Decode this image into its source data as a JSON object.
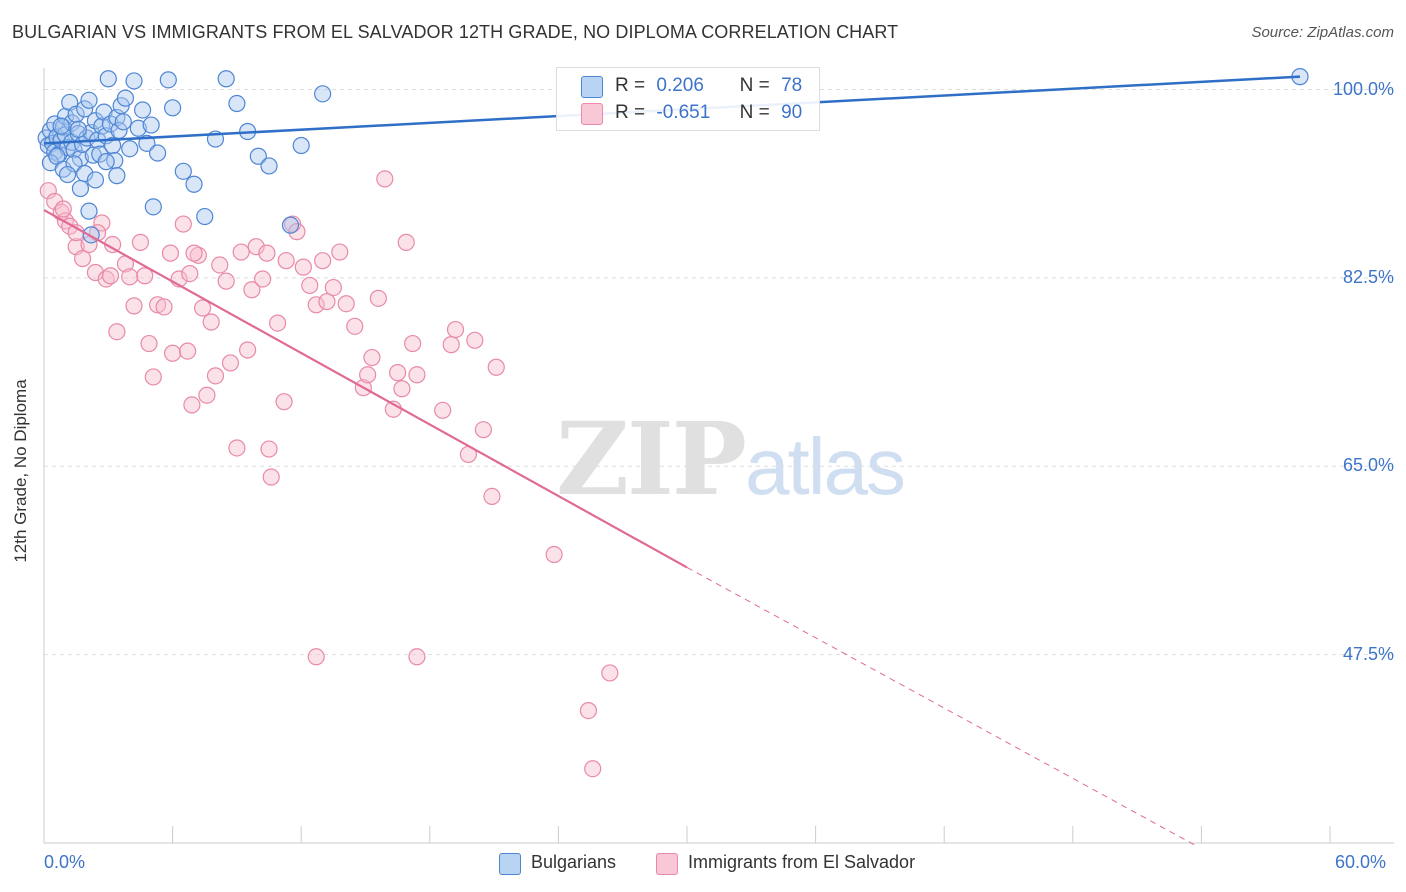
{
  "title": "BULGARIAN VS IMMIGRANTS FROM EL SALVADOR 12TH GRADE, NO DIPLOMA CORRELATION CHART",
  "source": "Source: ZipAtlas.com",
  "watermark": {
    "zip": "ZIP",
    "atlas": "atlas"
  },
  "colors": {
    "blue_fill": "#a9c8ef",
    "blue_stroke": "#4f86d4",
    "blue_line": "#2f6fc8",
    "pink_fill": "#f6bccd",
    "pink_stroke": "#e88aa8",
    "pink_line": "#e06a95",
    "grid": "#dddddd",
    "axis_text": "#3d74c9"
  },
  "legend_top": {
    "rows": [
      {
        "r_label": "R =",
        "r_value": "0.206",
        "n_label": "N =",
        "n_value": "78"
      },
      {
        "r_label": "R =",
        "r_value": "-0.651",
        "n_label": "N =",
        "n_value": "90"
      }
    ]
  },
  "legend_bottom": {
    "items": [
      "Bulgarians",
      "Immigrants from El Salvador"
    ]
  },
  "chart_data": {
    "type": "scatter",
    "title": "BULGARIAN VS IMMIGRANTS FROM EL SALVADOR 12TH GRADE, NO DIPLOMA CORRELATION CHART",
    "xlabel": "",
    "ylabel": "12th Grade, No Diploma",
    "xlim": [
      0,
      60
    ],
    "ylim": [
      30,
      102
    ],
    "x_tick_labels": [
      "0.0%",
      "60.0%"
    ],
    "y_ticks": [
      47.5,
      65.0,
      82.5,
      100.0
    ],
    "y_tick_labels": [
      "47.5%",
      "65.0%",
      "82.5%",
      "100.0%"
    ],
    "grid": true,
    "legend": "bottom",
    "series": [
      {
        "name": "Bulgarians",
        "R": 0.206,
        "N": 78,
        "trend": {
          "x": [
            0,
            58.6
          ],
          "y": [
            95.0,
            101.2
          ]
        },
        "points": [
          [
            0.1,
            95.5
          ],
          [
            0.2,
            94.8
          ],
          [
            0.3,
            96.2
          ],
          [
            0.4,
            95.0
          ],
          [
            0.5,
            94.2
          ],
          [
            0.5,
            96.8
          ],
          [
            0.6,
            95.6
          ],
          [
            0.7,
            94.0
          ],
          [
            0.8,
            95.3
          ],
          [
            0.9,
            96.5
          ],
          [
            1.0,
            95.8
          ],
          [
            1.0,
            97.5
          ],
          [
            1.1,
            94.6
          ],
          [
            1.2,
            98.8
          ],
          [
            1.3,
            95.1
          ],
          [
            1.3,
            96.9
          ],
          [
            1.4,
            94.4
          ],
          [
            1.5,
            97.7
          ],
          [
            1.6,
            95.9
          ],
          [
            1.7,
            93.6
          ],
          [
            1.8,
            94.9
          ],
          [
            1.9,
            98.2
          ],
          [
            2.0,
            95.5
          ],
          [
            2.1,
            99.0
          ],
          [
            2.2,
            96.0
          ],
          [
            2.3,
            93.9
          ],
          [
            2.4,
            97.1
          ],
          [
            2.5,
            95.3
          ],
          [
            2.6,
            94.0
          ],
          [
            2.7,
            96.6
          ],
          [
            2.8,
            97.9
          ],
          [
            2.9,
            95.7
          ],
          [
            3.0,
            101.0
          ],
          [
            3.1,
            96.8
          ],
          [
            3.2,
            94.8
          ],
          [
            3.3,
            93.4
          ],
          [
            3.4,
            97.4
          ],
          [
            3.5,
            96.2
          ],
          [
            3.6,
            98.5
          ],
          [
            3.7,
            97.0
          ],
          [
            3.8,
            99.2
          ],
          [
            4.0,
            94.5
          ],
          [
            4.2,
            100.8
          ],
          [
            4.4,
            96.4
          ],
          [
            4.6,
            98.1
          ],
          [
            4.8,
            95.0
          ],
          [
            5.0,
            96.7
          ],
          [
            5.3,
            94.1
          ],
          [
            5.8,
            100.9
          ],
          [
            6.0,
            98.3
          ],
          [
            6.5,
            92.4
          ],
          [
            7.0,
            91.2
          ],
          [
            7.5,
            88.2
          ],
          [
            8.0,
            95.4
          ],
          [
            8.5,
            101.0
          ],
          [
            9.0,
            98.7
          ],
          [
            9.5,
            96.1
          ],
          [
            10.0,
            93.8
          ],
          [
            10.5,
            92.9
          ],
          [
            11.5,
            87.4
          ],
          [
            12.0,
            94.8
          ],
          [
            13.0,
            99.6
          ],
          [
            0.3,
            93.2
          ],
          [
            0.6,
            93.8
          ],
          [
            0.9,
            92.6
          ],
          [
            1.4,
            93.1
          ],
          [
            1.9,
            92.2
          ],
          [
            2.4,
            91.6
          ],
          [
            2.9,
            93.3
          ],
          [
            3.4,
            92.0
          ],
          [
            1.7,
            90.8
          ],
          [
            2.1,
            88.7
          ],
          [
            2.2,
            86.5
          ],
          [
            5.1,
            89.1
          ],
          [
            1.1,
            92.1
          ],
          [
            0.8,
            96.6
          ],
          [
            1.6,
            96.3
          ],
          [
            58.6,
            101.2
          ]
        ]
      },
      {
        "name": "Immigrants from El Salvador",
        "R": -0.651,
        "N": 90,
        "trend": {
          "x": [
            0,
            30.0
          ],
          "y": [
            88.8,
            55.6
          ]
        },
        "trend_dashed": {
          "x": [
            30.0,
            53.7
          ],
          "y": [
            55.6,
            29.8
          ]
        },
        "points": [
          [
            0.2,
            90.6
          ],
          [
            0.5,
            89.6
          ],
          [
            0.8,
            88.6
          ],
          [
            1.0,
            87.8
          ],
          [
            1.2,
            87.3
          ],
          [
            1.5,
            85.4
          ],
          [
            1.8,
            84.3
          ],
          [
            2.1,
            85.6
          ],
          [
            2.4,
            83.0
          ],
          [
            2.7,
            87.6
          ],
          [
            2.9,
            82.4
          ],
          [
            3.1,
            82.7
          ],
          [
            3.4,
            77.5
          ],
          [
            3.8,
            83.8
          ],
          [
            4.0,
            82.6
          ],
          [
            4.2,
            79.9
          ],
          [
            4.5,
            85.8
          ],
          [
            4.7,
            82.7
          ],
          [
            4.9,
            76.4
          ],
          [
            5.1,
            73.3
          ],
          [
            5.3,
            80.0
          ],
          [
            5.6,
            79.8
          ],
          [
            5.9,
            84.8
          ],
          [
            6.0,
            75.5
          ],
          [
            6.3,
            82.4
          ],
          [
            6.5,
            87.5
          ],
          [
            6.7,
            75.7
          ],
          [
            6.9,
            70.7
          ],
          [
            7.2,
            84.6
          ],
          [
            7.4,
            79.7
          ],
          [
            7.6,
            71.6
          ],
          [
            7.8,
            78.4
          ],
          [
            8.0,
            73.4
          ],
          [
            8.2,
            83.7
          ],
          [
            8.5,
            82.2
          ],
          [
            8.7,
            74.6
          ],
          [
            9.0,
            66.7
          ],
          [
            9.2,
            84.9
          ],
          [
            9.5,
            75.8
          ],
          [
            9.7,
            81.4
          ],
          [
            9.9,
            85.4
          ],
          [
            10.2,
            82.4
          ],
          [
            10.4,
            84.8
          ],
          [
            10.5,
            66.6
          ],
          [
            10.6,
            64.0
          ],
          [
            10.9,
            78.3
          ],
          [
            11.2,
            71.0
          ],
          [
            11.3,
            84.1
          ],
          [
            11.6,
            87.5
          ],
          [
            11.8,
            86.8
          ],
          [
            12.1,
            83.5
          ],
          [
            12.4,
            81.8
          ],
          [
            12.7,
            80.0
          ],
          [
            13.0,
            84.1
          ],
          [
            13.2,
            80.3
          ],
          [
            13.5,
            81.6
          ],
          [
            13.8,
            84.9
          ],
          [
            14.1,
            80.1
          ],
          [
            14.5,
            78.0
          ],
          [
            14.9,
            72.3
          ],
          [
            15.1,
            73.5
          ],
          [
            15.3,
            75.1
          ],
          [
            15.6,
            80.6
          ],
          [
            15.9,
            91.7
          ],
          [
            16.3,
            70.3
          ],
          [
            16.5,
            73.7
          ],
          [
            16.7,
            72.2
          ],
          [
            16.9,
            85.8
          ],
          [
            17.2,
            76.4
          ],
          [
            17.4,
            73.5
          ],
          [
            18.6,
            70.2
          ],
          [
            19.0,
            76.3
          ],
          [
            19.2,
            77.7
          ],
          [
            19.8,
            66.1
          ],
          [
            20.1,
            76.7
          ],
          [
            20.5,
            68.4
          ],
          [
            20.9,
            62.2
          ],
          [
            21.1,
            74.2
          ],
          [
            23.8,
            56.8
          ],
          [
            25.4,
            42.3
          ],
          [
            25.6,
            36.9
          ],
          [
            26.4,
            45.8
          ],
          [
            17.4,
            47.3
          ],
          [
            12.7,
            47.3
          ],
          [
            0.9,
            88.9
          ],
          [
            1.5,
            86.7
          ],
          [
            2.5,
            86.7
          ],
          [
            3.2,
            85.6
          ],
          [
            6.8,
            82.9
          ],
          [
            7.0,
            84.8
          ]
        ]
      }
    ]
  }
}
